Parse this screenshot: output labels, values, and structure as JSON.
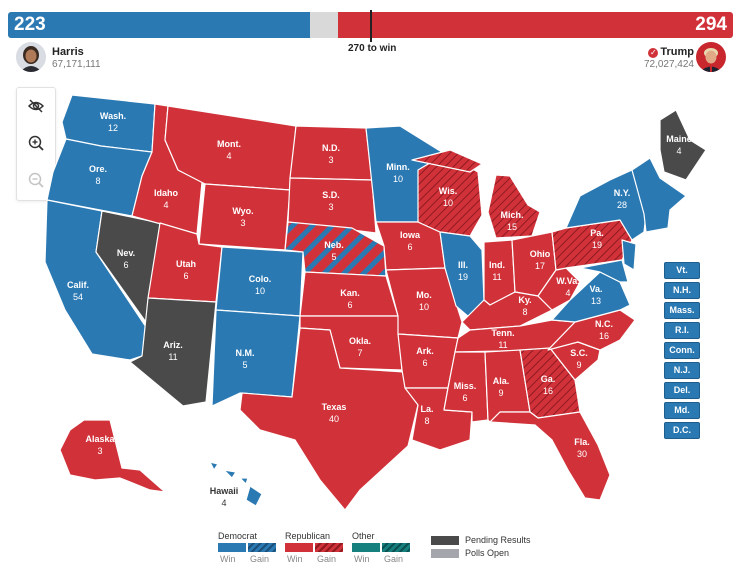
{
  "tally": {
    "dem_ev": "223",
    "rep_ev": "294",
    "threshold": "270 to win"
  },
  "candidates": {
    "dem": {
      "name": "Harris",
      "votes": "67,171,111"
    },
    "rep": {
      "name": "Trump",
      "votes": "72,027,424",
      "winner": true
    }
  },
  "colors": {
    "dem": "#2b79b3",
    "rep": "#d1323a",
    "other": "#16807f",
    "pending": "#4a4a4a",
    "polls_open": "#a4a6ab"
  },
  "map_controls": [
    "hide-labels-icon",
    "zoom-in-icon",
    "zoom-out-icon"
  ],
  "states": {
    "wa": {
      "abbr": "Wash.",
      "ev": "12"
    },
    "or": {
      "abbr": "Ore.",
      "ev": "8"
    },
    "ca": {
      "abbr": "Calif.",
      "ev": "54"
    },
    "nv": {
      "abbr": "Nev.",
      "ev": "6"
    },
    "id": {
      "abbr": "Idaho",
      "ev": "4"
    },
    "mt": {
      "abbr": "Mont.",
      "ev": "4"
    },
    "wy": {
      "abbr": "Wyo.",
      "ev": "3"
    },
    "ut": {
      "abbr": "Utah",
      "ev": "6"
    },
    "az": {
      "abbr": "Ariz.",
      "ev": "11"
    },
    "co": {
      "abbr": "Colo.",
      "ev": "10"
    },
    "nm": {
      "abbr": "N.M.",
      "ev": "5"
    },
    "nd": {
      "abbr": "N.D.",
      "ev": "3"
    },
    "sd": {
      "abbr": "S.D.",
      "ev": "3"
    },
    "ne": {
      "abbr": "Neb.",
      "ev": "5"
    },
    "ks": {
      "abbr": "Kan.",
      "ev": "6"
    },
    "ok": {
      "abbr": "Okla.",
      "ev": "7"
    },
    "tx": {
      "abbr": "Texas",
      "ev": "40"
    },
    "mn": {
      "abbr": "Minn.",
      "ev": "10"
    },
    "ia": {
      "abbr": "Iowa",
      "ev": "6"
    },
    "mo": {
      "abbr": "Mo.",
      "ev": "10"
    },
    "ar": {
      "abbr": "Ark.",
      "ev": "6"
    },
    "la": {
      "abbr": "La.",
      "ev": "8"
    },
    "wi": {
      "abbr": "Wis.",
      "ev": "10"
    },
    "il": {
      "abbr": "Ill.",
      "ev": "19"
    },
    "mi": {
      "abbr": "Mich.",
      "ev": "15"
    },
    "in": {
      "abbr": "Ind.",
      "ev": "11"
    },
    "oh": {
      "abbr": "Ohio",
      "ev": "17"
    },
    "ky": {
      "abbr": "Ky.",
      "ev": "8"
    },
    "tn": {
      "abbr": "Tenn.",
      "ev": "11"
    },
    "ms": {
      "abbr": "Miss.",
      "ev": "6"
    },
    "al": {
      "abbr": "Ala.",
      "ev": "9"
    },
    "ga": {
      "abbr": "Ga.",
      "ev": "16"
    },
    "fl": {
      "abbr": "Fla.",
      "ev": "30"
    },
    "sc": {
      "abbr": "S.C.",
      "ev": "9"
    },
    "nc": {
      "abbr": "N.C.",
      "ev": "16"
    },
    "va": {
      "abbr": "Va.",
      "ev": "13"
    },
    "wv": {
      "abbr": "W.Va.",
      "ev": "4"
    },
    "pa": {
      "abbr": "Pa.",
      "ev": "19"
    },
    "ny": {
      "abbr": "N.Y.",
      "ev": "28"
    },
    "me": {
      "abbr": "Maine",
      "ev": "4"
    },
    "ak": {
      "abbr": "Alaska",
      "ev": "3"
    },
    "hi": {
      "abbr": "Hawaii",
      "ev": "4"
    }
  },
  "small_states": [
    "Vt.",
    "N.H.",
    "Mass.",
    "R.I.",
    "Conn.",
    "N.J.",
    "Del.",
    "Md.",
    "D.C."
  ],
  "legend": {
    "dem": {
      "title": "Democrat",
      "win": "Win",
      "gain": "Gain"
    },
    "rep": {
      "title": "Republican",
      "win": "Win",
      "gain": "Gain"
    },
    "other": {
      "title": "Other",
      "win": "Win",
      "gain": "Gain"
    },
    "pending": "Pending Results",
    "polls_open": "Polls Open"
  }
}
